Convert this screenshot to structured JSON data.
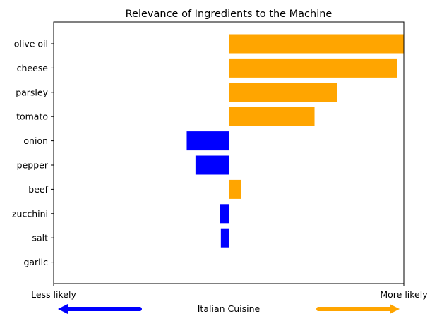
{
  "chart_data": {
    "type": "bar",
    "orientation": "horizontal",
    "title": "Relevance of Ingredients to the Machine",
    "categories": [
      "olive oil",
      "cheese",
      "parsley",
      "tomato",
      "onion",
      "pepper",
      "beef",
      "zucchini",
      "salt",
      "garlic"
    ],
    "values": [
      1.0,
      0.96,
      0.62,
      0.49,
      -0.24,
      -0.19,
      0.07,
      -0.05,
      -0.045,
      0.0
    ],
    "xlim": [
      -1,
      1
    ],
    "xtick_labels": [
      "Less likely",
      "More likely"
    ],
    "xlabel": "Italian Cuisine",
    "grid": false,
    "colors": {
      "positive": "#ffa500",
      "negative": "#0000ff"
    }
  }
}
